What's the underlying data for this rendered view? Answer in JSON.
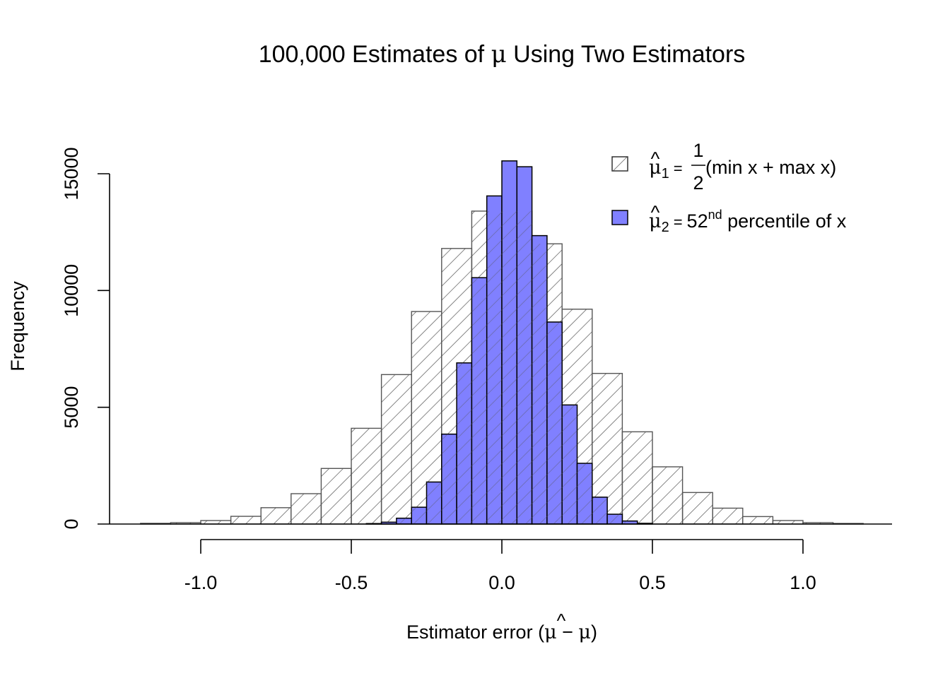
{
  "chart_data": {
    "type": "bar",
    "subtype": "overlaid-histogram",
    "title": {
      "prefix": "100,000 Estimates of ",
      "symbol": "μ",
      "suffix": " Using Two Estimators"
    },
    "xlabel": {
      "prefix": "Estimator error (",
      "symbol_hat": "μ",
      "hat_mark": "^",
      "minus": " − ",
      "symbol": "μ",
      "suffix": ")"
    },
    "ylabel": "Frequency",
    "xlim": [
      -1.3,
      1.3
    ],
    "ylim": [
      0,
      15600
    ],
    "x_ticks": [
      -1.0,
      -0.5,
      0.0,
      0.5,
      1.0
    ],
    "x_tick_labels": [
      "-1.0",
      "-0.5",
      "0.0",
      "0.5",
      "1.0"
    ],
    "y_ticks": [
      0,
      5000,
      10000,
      15000
    ],
    "y_tick_labels": [
      "0",
      "5000",
      "10000",
      "15000"
    ],
    "grid": false,
    "legend_position": "top-right",
    "series": [
      {
        "name": "mu_hat_1 = 1/2(min x + max x)",
        "legend": {
          "symbol": "μ",
          "hat": "^",
          "sub": "1",
          "eq": "=",
          "frac_num": "1",
          "frac_den": "2",
          "rest": "(min x + max x)"
        },
        "style": "hatched",
        "bin_width": 0.1,
        "bin_start": -1.2,
        "values": [
          30,
          60,
          150,
          330,
          700,
          1300,
          2380,
          4100,
          6400,
          9100,
          11800,
          13400,
          13400,
          12000,
          9200,
          6450,
          3950,
          2450,
          1350,
          680,
          320,
          150,
          60,
          25
        ]
      },
      {
        "name": "mu_hat_2 = 52nd percentile of x",
        "legend": {
          "symbol": "μ",
          "hat": "^",
          "sub": "2",
          "eq": "=",
          "num": "52",
          "sup": "nd",
          "rest": " percentile of x"
        },
        "style": "filled",
        "color": "#8080ff",
        "bin_width": 0.05,
        "bin_start": -0.45,
        "values": [
          20,
          80,
          250,
          720,
          1800,
          3850,
          6900,
          10550,
          14050,
          15550,
          15300,
          12350,
          8650,
          5100,
          2600,
          1150,
          420,
          130,
          30
        ]
      }
    ]
  }
}
